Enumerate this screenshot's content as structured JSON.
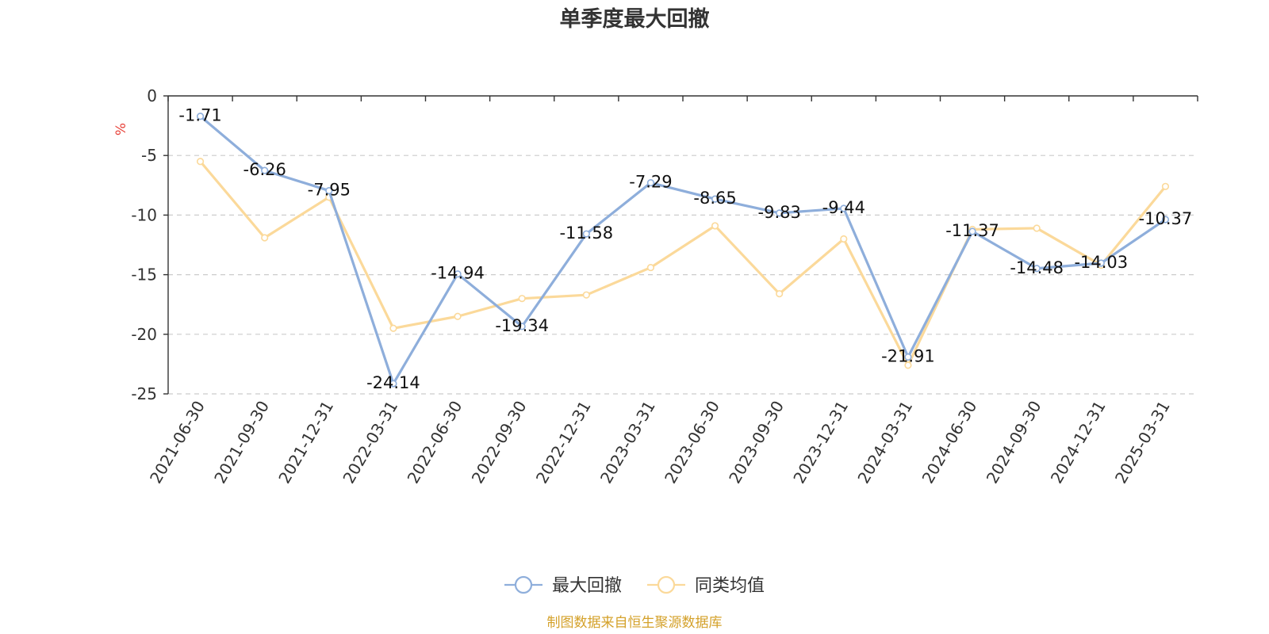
{
  "chart_data": {
    "type": "line",
    "title": "单季度最大回撤",
    "ylabel": "%",
    "ylim": [
      -25,
      0
    ],
    "yticks": [
      0,
      -5,
      -10,
      -15,
      -20,
      -25
    ],
    "grid": true,
    "legend_position": "bottom",
    "categories": [
      "2021-06-30",
      "2021-09-30",
      "2021-12-31",
      "2022-03-31",
      "2022-06-30",
      "2022-09-30",
      "2022-12-31",
      "2023-03-31",
      "2023-06-30",
      "2023-09-30",
      "2023-12-31",
      "2024-03-31",
      "2024-06-30",
      "2024-09-30",
      "2024-12-31",
      "2025-03-31"
    ],
    "series": [
      {
        "name": "最大回撤",
        "color": "#8eaedb",
        "show_labels": true,
        "values": [
          -1.71,
          -6.26,
          -7.95,
          -24.14,
          -14.94,
          -19.34,
          -11.58,
          -7.29,
          -8.65,
          -9.83,
          -9.44,
          -21.91,
          -11.37,
          -14.48,
          -14.03,
          -10.37
        ]
      },
      {
        "name": "同类均值",
        "color": "#fbd99a",
        "show_labels": false,
        "values": [
          -5.5,
          -11.9,
          -8.5,
          -19.5,
          -18.5,
          -17.0,
          -16.7,
          -14.4,
          -10.9,
          -16.6,
          -12.0,
          -22.6,
          -11.2,
          -11.1,
          -14.2,
          -7.6
        ]
      }
    ]
  },
  "source_text": "制图数据来自恒生聚源数据库",
  "colors": {
    "unit_label": "#e8433b",
    "source_text": "#d4a12a",
    "axis": "#333333",
    "grid": "#cccccc"
  }
}
